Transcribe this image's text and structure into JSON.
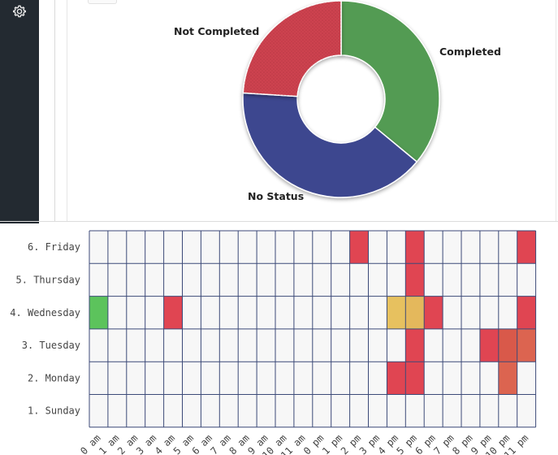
{
  "chart_data": [
    {
      "type": "pie",
      "donut": true,
      "slices": [
        {
          "label": "Completed",
          "value": 36,
          "color": "#529b52"
        },
        {
          "label": "No Status",
          "value": 40,
          "color": "#3d478f"
        },
        {
          "label": "Not Completed",
          "value": 24,
          "color": "#cd4250"
        }
      ]
    },
    {
      "type": "heatmap",
      "y_categories": [
        "6. Friday",
        "5. Thursday",
        "4. Wednesday",
        "3. Tuesday",
        "2. Monday",
        "1. Sunday"
      ],
      "x_count": 24,
      "x_tick_labels": [
        "0 am",
        "1 am",
        "2 am",
        "3 am",
        "4 am",
        "5 am",
        "6 am",
        "7 am",
        "8 am",
        "9 am",
        "10 am",
        "11 am",
        "0 pm",
        "1 pm",
        "2 pm",
        "3 pm",
        "4 pm",
        "5 pm",
        "6 pm",
        "7 pm",
        "8 pm",
        "9 pm",
        "10 pm",
        "11 pm"
      ],
      "empty_color": "#f7f7f7",
      "cells": [
        {
          "day": "6. Friday",
          "hour": 14,
          "color": "#e04552"
        },
        {
          "day": "6. Friday",
          "hour": 17,
          "color": "#e04552"
        },
        {
          "day": "6. Friday",
          "hour": 23,
          "color": "#e04552"
        },
        {
          "day": "5. Thursday",
          "hour": 17,
          "color": "#e04552"
        },
        {
          "day": "4. Wednesday",
          "hour": 0,
          "color": "#5cc35c"
        },
        {
          "day": "4. Wednesday",
          "hour": 4,
          "color": "#e04552"
        },
        {
          "day": "4. Wednesday",
          "hour": 16,
          "color": "#e7c15f"
        },
        {
          "day": "4. Wednesday",
          "hour": 17,
          "color": "#e4b85c"
        },
        {
          "day": "4. Wednesday",
          "hour": 18,
          "color": "#e04552"
        },
        {
          "day": "4. Wednesday",
          "hour": 23,
          "color": "#e04552"
        },
        {
          "day": "3. Tuesday",
          "hour": 17,
          "color": "#e04552"
        },
        {
          "day": "3. Tuesday",
          "hour": 21,
          "color": "#e04552"
        },
        {
          "day": "3. Tuesday",
          "hour": 22,
          "color": "#d9594a"
        },
        {
          "day": "3. Tuesday",
          "hour": 23,
          "color": "#dc6450"
        },
        {
          "day": "2. Monday",
          "hour": 16,
          "color": "#e04552"
        },
        {
          "day": "2. Monday",
          "hour": 17,
          "color": "#e04552"
        },
        {
          "day": "2. Monday",
          "hour": 22,
          "color": "#dc6450"
        }
      ]
    }
  ],
  "icons": {
    "settings": "gear-icon"
  }
}
